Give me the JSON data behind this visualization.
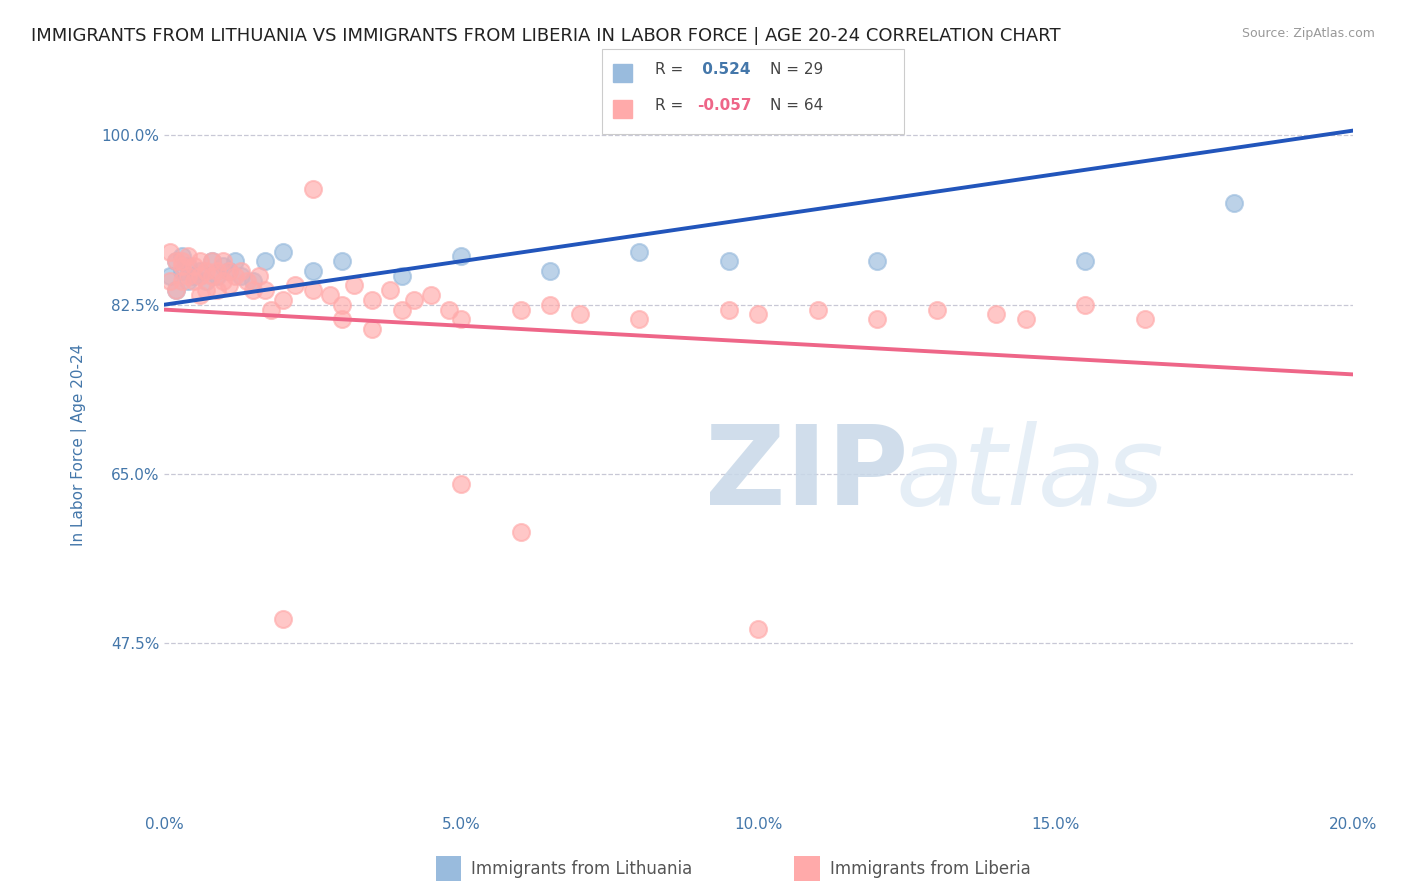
{
  "title": "IMMIGRANTS FROM LITHUANIA VS IMMIGRANTS FROM LIBERIA IN LABOR FORCE | AGE 20-24 CORRELATION CHART",
  "source": "Source: ZipAtlas.com",
  "ylabel": "In Labor Force | Age 20-24",
  "legend_label_blue": "Immigrants from Lithuania",
  "legend_label_pink": "Immigrants from Liberia",
  "r_blue": 0.524,
  "n_blue": 29,
  "r_pink": -0.057,
  "n_pink": 64,
  "xlim": [
    0.0,
    0.2
  ],
  "ylim": [
    0.3,
    1.06
  ],
  "yticks": [
    0.475,
    0.65,
    0.825,
    1.0
  ],
  "ytick_labels": [
    "47.5%",
    "65.0%",
    "82.5%",
    "100.0%"
  ],
  "xticks": [
    0.0,
    0.05,
    0.1,
    0.15,
    0.2
  ],
  "xtick_labels": [
    "0.0%",
    "5.0%",
    "10.0%",
    "15.0%",
    "20.0%"
  ],
  "color_blue": "#99BBDD",
  "color_pink": "#FFAAAA",
  "trend_blue": "#2255BB",
  "trend_pink": "#EE6688",
  "bg_color": "#FFFFFF",
  "tick_color": "#4477AA",
  "grid_color": "#BBBBCC",
  "title_color": "#222222",
  "title_fontsize": 13.0,
  "axis_label_fontsize": 11,
  "tick_fontsize": 11,
  "legend_fontsize": 12,
  "blue_trend_x0": 0.0,
  "blue_trend_y0": 0.825,
  "blue_trend_x1": 0.2,
  "blue_trend_y1": 1.005,
  "pink_trend_x0": 0.0,
  "pink_trend_y0": 0.82,
  "pink_trend_x1": 0.2,
  "pink_trend_y1": 0.753,
  "blue_scatter_x": [
    0.001,
    0.002,
    0.002,
    0.003,
    0.003,
    0.004,
    0.004,
    0.005,
    0.006,
    0.007,
    0.008,
    0.009,
    0.01,
    0.011,
    0.012,
    0.013,
    0.015,
    0.017,
    0.02,
    0.025,
    0.03,
    0.04,
    0.05,
    0.065,
    0.08,
    0.095,
    0.12,
    0.155,
    0.18
  ],
  "blue_scatter_y": [
    0.855,
    0.87,
    0.84,
    0.86,
    0.875,
    0.85,
    0.865,
    0.855,
    0.86,
    0.85,
    0.87,
    0.855,
    0.865,
    0.86,
    0.87,
    0.855,
    0.85,
    0.87,
    0.88,
    0.86,
    0.87,
    0.855,
    0.875,
    0.86,
    0.88,
    0.87,
    0.87,
    0.87,
    0.93
  ],
  "pink_scatter_x": [
    0.001,
    0.001,
    0.002,
    0.002,
    0.003,
    0.003,
    0.003,
    0.004,
    0.004,
    0.005,
    0.005,
    0.006,
    0.006,
    0.006,
    0.007,
    0.007,
    0.008,
    0.008,
    0.009,
    0.009,
    0.01,
    0.01,
    0.011,
    0.011,
    0.012,
    0.013,
    0.014,
    0.015,
    0.016,
    0.017,
    0.018,
    0.02,
    0.022,
    0.025,
    0.028,
    0.03,
    0.032,
    0.035,
    0.038,
    0.04,
    0.042,
    0.045,
    0.048,
    0.05,
    0.06,
    0.065,
    0.07,
    0.08,
    0.095,
    0.1,
    0.11,
    0.12,
    0.13,
    0.14,
    0.155,
    0.165,
    0.025,
    0.03,
    0.1,
    0.035,
    0.02,
    0.05,
    0.145,
    0.06
  ],
  "pink_scatter_y": [
    0.88,
    0.85,
    0.87,
    0.84,
    0.865,
    0.85,
    0.87,
    0.855,
    0.875,
    0.85,
    0.865,
    0.87,
    0.855,
    0.835,
    0.86,
    0.84,
    0.87,
    0.855,
    0.86,
    0.84,
    0.87,
    0.85,
    0.86,
    0.845,
    0.855,
    0.86,
    0.85,
    0.84,
    0.855,
    0.84,
    0.82,
    0.83,
    0.845,
    0.84,
    0.835,
    0.825,
    0.845,
    0.83,
    0.84,
    0.82,
    0.83,
    0.835,
    0.82,
    0.81,
    0.82,
    0.825,
    0.815,
    0.81,
    0.82,
    0.815,
    0.82,
    0.81,
    0.82,
    0.815,
    0.825,
    0.81,
    0.945,
    0.81,
    0.49,
    0.8,
    0.5,
    0.64,
    0.81,
    0.59
  ]
}
